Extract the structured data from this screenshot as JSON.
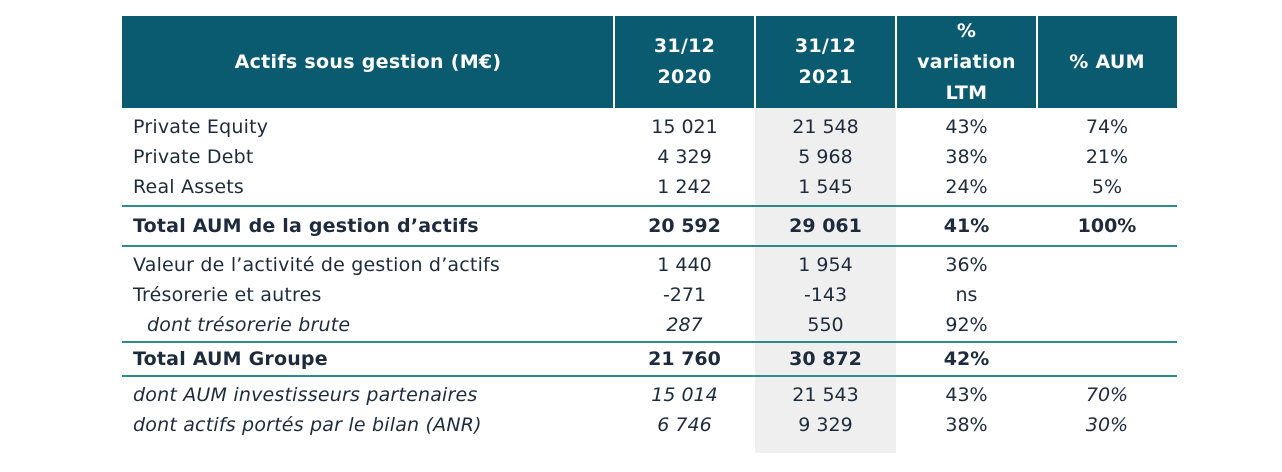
{
  "header": {
    "label": "Actifs sous gestion (M€)",
    "col1": [
      "31/12",
      "2020"
    ],
    "col2": [
      "31/12",
      "2021"
    ],
    "col3": [
      "%",
      "variation",
      "LTM"
    ],
    "col4": "% AUM"
  },
  "rows": [
    {
      "label": "Private Equity",
      "v2020": "15 021",
      "v2021": "21 548",
      "var": "43%",
      "aum": "74%"
    },
    {
      "label": "Private Debt",
      "v2020": "4 329",
      "v2021": "5 968",
      "var": "38%",
      "aum": "21%"
    },
    {
      "label": "Real Assets",
      "v2020": "1 242",
      "v2021": "1 545",
      "var": "24%",
      "aum": "5%"
    },
    {
      "label": "Total AUM de la gestion d’actifs",
      "v2020": "20 592",
      "v2021": "29 061",
      "var": "41%",
      "aum": "100%"
    },
    {
      "label": "Valeur de l’activité de gestion d’actifs",
      "v2020": "1 440",
      "v2021": "1 954",
      "var": "36%",
      "aum": ""
    },
    {
      "label": "Trésorerie et autres",
      "v2020": "-271",
      "v2021": "-143",
      "var": "ns",
      "aum": ""
    },
    {
      "label": "dont trésorerie brute",
      "v2020": "287",
      "v2021": "550",
      "var": "92%",
      "aum": ""
    },
    {
      "label": "Total AUM Groupe",
      "v2020": "21 760",
      "v2021": "30 872",
      "var": "42%",
      "aum": ""
    },
    {
      "label": "dont AUM investisseurs partenaires",
      "v2020": "15 014",
      "v2021": "21 543",
      "var": "43%",
      "aum": "70%"
    },
    {
      "label": "dont actifs portés par le bilan (ANR)",
      "v2020": "6 746",
      "v2021": "9 329",
      "var": "38%",
      "aum": "30%"
    }
  ]
}
